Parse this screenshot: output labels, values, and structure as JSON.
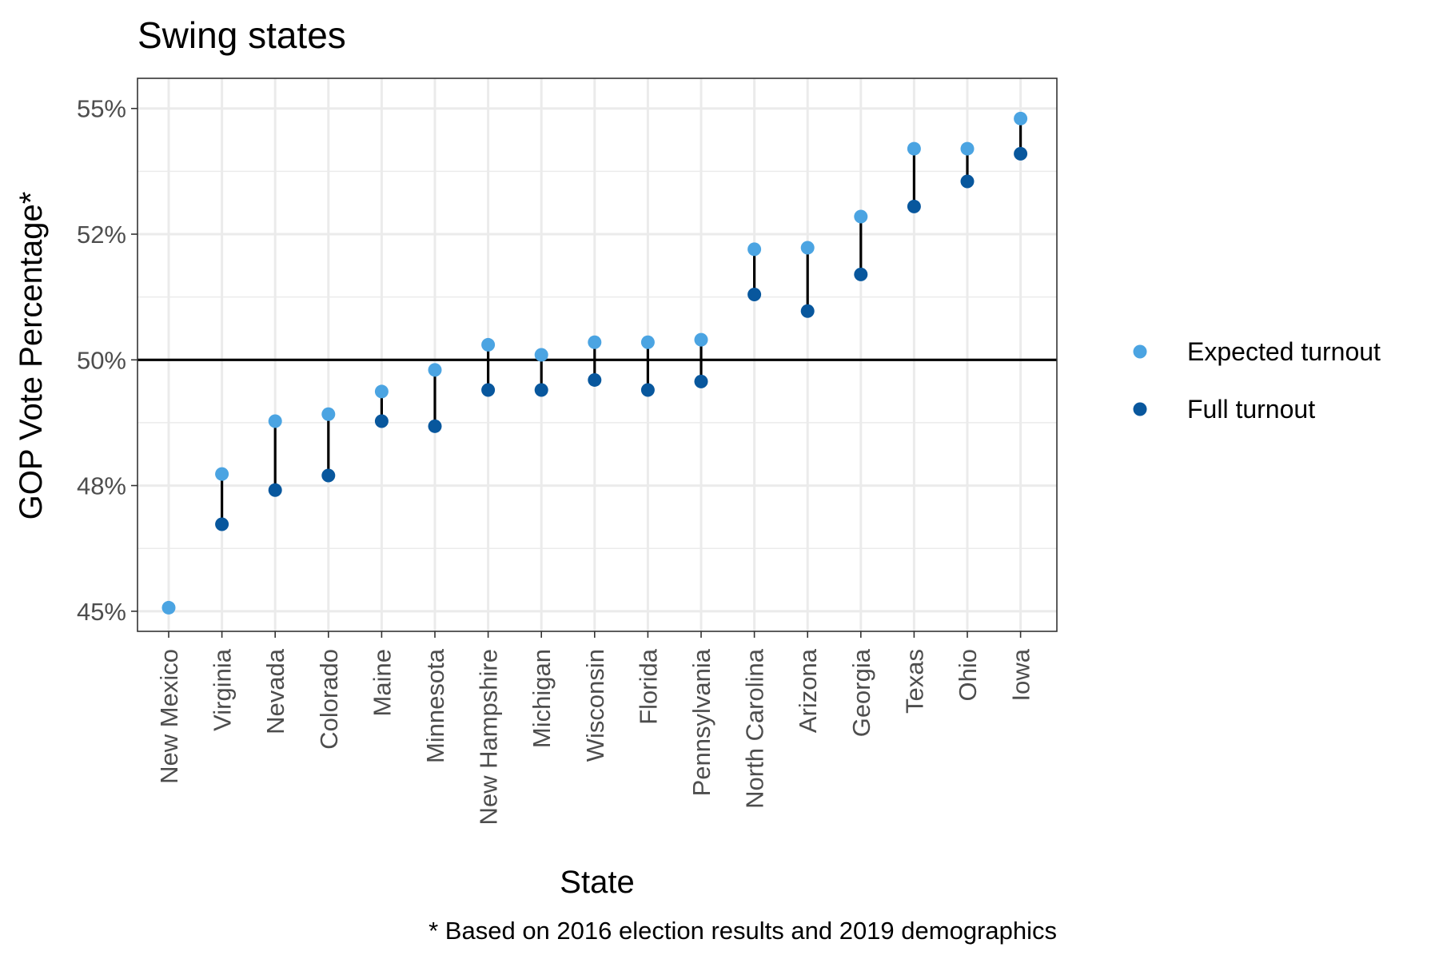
{
  "chart_data": {
    "type": "scatter",
    "title": "Swing states",
    "xlabel": "State",
    "ylabel": "GOP Vote Percentage*",
    "caption": "* Based on 2016 election results and 2019 demographics",
    "ylim": [
      44.6,
      55.6
    ],
    "y_ticks": [
      {
        "value": 45,
        "label": "45%"
      },
      {
        "value": 47.5,
        "label": "48%"
      },
      {
        "value": 50,
        "label": "50%"
      },
      {
        "value": 52.5,
        "label": "52%"
      },
      {
        "value": 55,
        "label": "55%"
      }
    ],
    "y_minor_ticks": [
      46.25,
      48.75,
      51.25,
      53.75
    ],
    "reference_line": 50,
    "grid": true,
    "legend_position": "right",
    "colors": {
      "expected": "#4ba4e2",
      "full": "#08579d",
      "segment": "#000000",
      "grid": "#ebebeb",
      "panel_border": "#333333"
    },
    "categories": [
      "New Mexico",
      "Virginia",
      "Nevada",
      "Colorado",
      "Maine",
      "Minnesota",
      "New Hampshire",
      "Michigan",
      "Wisconsin",
      "Florida",
      "Pennsylvania",
      "North Carolina",
      "Arizona",
      "Georgia",
      "Texas",
      "Ohio",
      "Iowa"
    ],
    "series": [
      {
        "name": "Expected turnout",
        "values": [
          45.07,
          47.73,
          48.78,
          48.92,
          49.37,
          49.8,
          50.3,
          50.1,
          50.35,
          50.35,
          50.4,
          52.2,
          52.23,
          52.85,
          54.2,
          54.2,
          54.8
        ]
      },
      {
        "name": "Full turnout",
        "values": [
          null,
          46.73,
          47.41,
          47.7,
          48.78,
          48.68,
          49.4,
          49.4,
          49.6,
          49.4,
          49.57,
          51.3,
          50.97,
          51.7,
          53.05,
          53.55,
          54.1
        ]
      }
    ]
  }
}
